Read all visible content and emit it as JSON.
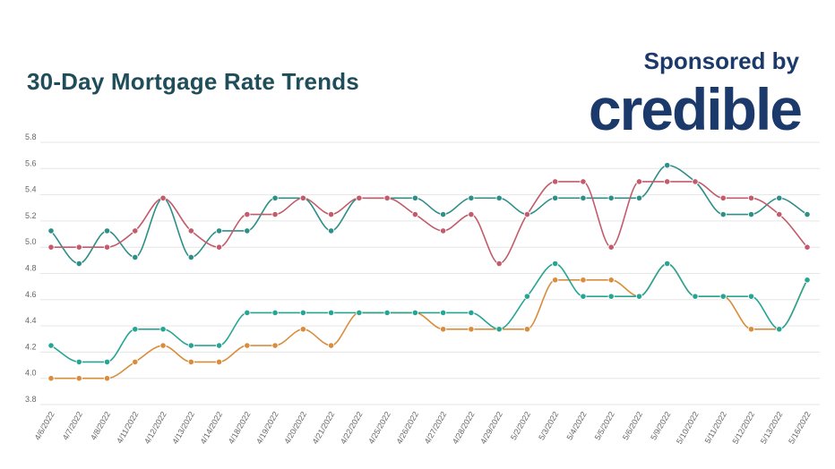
{
  "header": {
    "title": "30-Day Mortgage Rate Trends",
    "sponsored_label": "Sponsored by",
    "logo_text": "credible"
  },
  "chart_data": {
    "type": "line",
    "title": "30-Day Mortgage Rate Trends",
    "xlabel": "",
    "ylabel": "",
    "ylim": [
      3.8,
      5.8
    ],
    "yticks": [
      "3.8",
      "4.0",
      "4.2",
      "4.4",
      "4.6",
      "4.8",
      "5.0",
      "5.2",
      "5.4",
      "5.6",
      "5.8"
    ],
    "grid": true,
    "legend": "none",
    "smooth": true,
    "x": [
      "4/6/2022",
      "4/7/2022",
      "4/8/2022",
      "4/11/2022",
      "4/12/2022",
      "4/13/2022",
      "4/14/2022",
      "4/18/2022",
      "4/19/2022",
      "4/20/2022",
      "4/21/2022",
      "4/22/2022",
      "4/25/2022",
      "4/26/2022",
      "4/27/2022",
      "4/28/2022",
      "4/29/2022",
      "5/2/2022",
      "5/3/2022",
      "5/4/2022",
      "5/5/2022",
      "5/6/2022",
      "5/9/2022",
      "5/10/2022",
      "5/11/2022",
      "5/12/2022",
      "5/13/2022",
      "5/16/2022"
    ],
    "series": [
      {
        "color": "#2e8f88",
        "values": [
          5.125,
          4.875,
          5.125,
          4.923,
          5.375,
          4.923,
          5.125,
          5.125,
          5.375,
          5.375,
          5.125,
          5.375,
          5.375,
          5.375,
          5.25,
          5.375,
          5.375,
          5.25,
          5.375,
          5.375,
          5.375,
          5.375,
          5.625,
          5.5,
          5.25,
          5.25,
          5.375,
          5.25
        ]
      },
      {
        "color": "#c25b6c",
        "values": [
          5.0,
          5.0,
          5.0,
          5.125,
          5.375,
          5.125,
          5.0,
          5.25,
          5.25,
          5.375,
          5.25,
          5.375,
          5.375,
          5.25,
          5.125,
          5.25,
          4.875,
          5.25,
          5.5,
          5.5,
          5.0,
          5.5,
          5.5,
          5.5,
          5.375,
          5.375,
          5.25,
          5.0
        ]
      },
      {
        "color": "#d98d3c",
        "values": [
          4.0,
          4.0,
          4.0,
          4.125,
          4.25,
          4.125,
          4.125,
          4.25,
          4.25,
          4.375,
          4.25,
          4.5,
          4.5,
          4.5,
          4.375,
          4.375,
          4.375,
          4.375,
          4.75,
          4.75,
          4.75,
          4.625,
          4.875,
          4.625,
          4.625,
          4.375,
          4.375,
          4.75
        ]
      },
      {
        "color": "#27a594",
        "values": [
          4.25,
          4.125,
          4.125,
          4.375,
          4.375,
          4.25,
          4.25,
          4.5,
          4.5,
          4.5,
          4.5,
          4.5,
          4.5,
          4.5,
          4.5,
          4.5,
          4.375,
          4.625,
          4.875,
          4.625,
          4.625,
          4.625,
          4.875,
          4.625,
          4.625,
          4.625,
          4.375,
          4.75
        ]
      }
    ]
  }
}
